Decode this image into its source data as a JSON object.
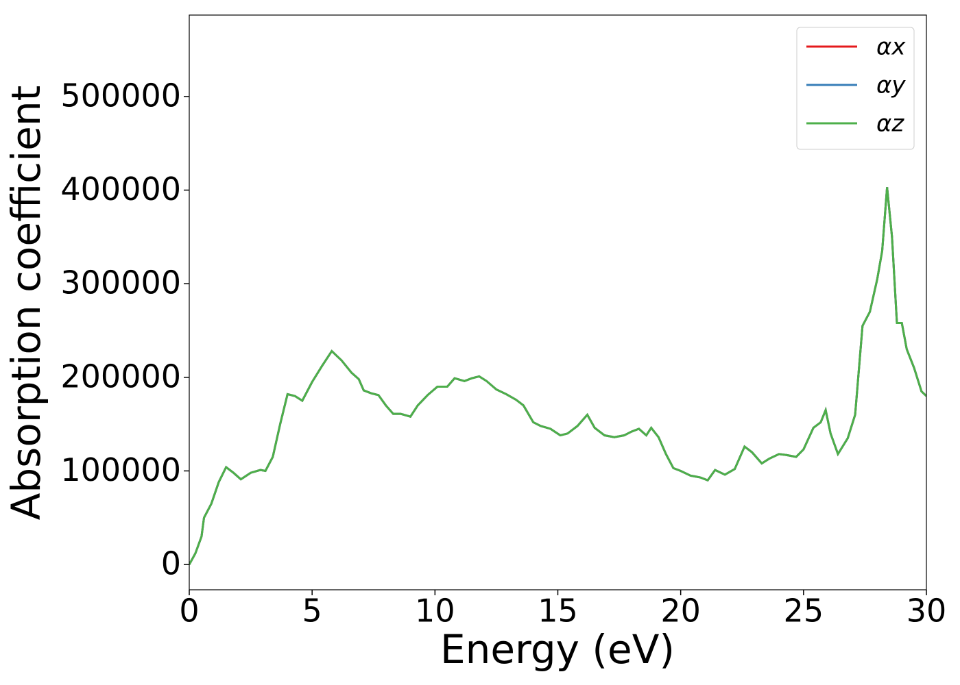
{
  "chart_data": {
    "type": "line",
    "xlabel": "Energy (eV)",
    "ylabel": "Absorption coefficient",
    "x": [
      0,
      0.25,
      0.5,
      0.6,
      0.9,
      1.2,
      1.5,
      1.8,
      2.1,
      2.5,
      2.9,
      3.1,
      3.4,
      3.7,
      4.0,
      4.3,
      4.6,
      5.0,
      5.4,
      5.8,
      6.2,
      6.6,
      6.9,
      7.1,
      7.4,
      7.7,
      8.0,
      8.3,
      8.6,
      9.0,
      9.3,
      9.7,
      10.1,
      10.5,
      10.8,
      11.2,
      11.5,
      11.8,
      12.1,
      12.5,
      12.9,
      13.3,
      13.6,
      14.0,
      14.3,
      14.7,
      15.1,
      15.4,
      15.8,
      16.2,
      16.5,
      16.9,
      17.3,
      17.7,
      18.0,
      18.3,
      18.6,
      18.8,
      19.1,
      19.4,
      19.7,
      20.0,
      20.4,
      20.8,
      21.1,
      21.4,
      21.8,
      22.2,
      22.6,
      22.9,
      23.3,
      23.6,
      24.0,
      24.3,
      24.7,
      25.0,
      25.4,
      25.7,
      25.9,
      26.1,
      26.4,
      26.8,
      27.1,
      27.4,
      27.7,
      28.0,
      28.2,
      28.4,
      28.6,
      28.8,
      29.0,
      29.2,
      29.5,
      29.8,
      30
    ],
    "series": [
      {
        "name": "αx",
        "color": "#e41a1c",
        "values": [
          0,
          12000,
          30000,
          50000,
          65000,
          88000,
          104000,
          98000,
          91000,
          98000,
          101000,
          100000,
          115000,
          150000,
          182000,
          180000,
          175000,
          195000,
          212000,
          228000,
          218000,
          205000,
          198000,
          186000,
          183000,
          181000,
          170000,
          161000,
          161000,
          158000,
          170000,
          181000,
          190000,
          190000,
          199000,
          196000,
          199000,
          201000,
          196000,
          187000,
          182000,
          176000,
          170000,
          152000,
          148000,
          145000,
          138000,
          140000,
          148000,
          160000,
          146000,
          138000,
          136000,
          138000,
          142000,
          145000,
          138000,
          146000,
          136000,
          118000,
          103000,
          100000,
          95000,
          93000,
          90000,
          101000,
          96000,
          102000,
          126000,
          120000,
          108000,
          113000,
          118000,
          117000,
          115000,
          123000,
          146000,
          152000,
          165000,
          140000,
          118000,
          135000,
          160000,
          255000,
          270000,
          305000,
          335000,
          403000,
          350000,
          258000,
          258000,
          230000,
          210000,
          185000,
          180000
        ]
      },
      {
        "name": "αy",
        "color": "#377eb8",
        "values": [
          0,
          12000,
          30000,
          50000,
          65000,
          88000,
          104000,
          98000,
          91000,
          98000,
          101000,
          100000,
          115000,
          150000,
          182000,
          180000,
          175000,
          195000,
          212000,
          228000,
          218000,
          205000,
          198000,
          186000,
          183000,
          181000,
          170000,
          161000,
          161000,
          158000,
          170000,
          181000,
          190000,
          190000,
          199000,
          196000,
          199000,
          201000,
          196000,
          187000,
          182000,
          176000,
          170000,
          152000,
          148000,
          145000,
          138000,
          140000,
          148000,
          160000,
          146000,
          138000,
          136000,
          138000,
          142000,
          145000,
          138000,
          146000,
          136000,
          118000,
          103000,
          100000,
          95000,
          93000,
          90000,
          101000,
          96000,
          102000,
          126000,
          120000,
          108000,
          113000,
          118000,
          117000,
          115000,
          123000,
          146000,
          152000,
          165000,
          140000,
          118000,
          135000,
          160000,
          255000,
          270000,
          305000,
          335000,
          403000,
          350000,
          258000,
          258000,
          230000,
          210000,
          185000,
          180000
        ]
      },
      {
        "name": "αz",
        "color": "#4daf4a",
        "values": [
          0,
          12000,
          30000,
          50000,
          65000,
          88000,
          104000,
          98000,
          91000,
          98000,
          101000,
          100000,
          115000,
          150000,
          182000,
          180000,
          175000,
          195000,
          212000,
          228000,
          218000,
          205000,
          198000,
          186000,
          183000,
          181000,
          170000,
          161000,
          161000,
          158000,
          170000,
          181000,
          190000,
          190000,
          199000,
          196000,
          199000,
          201000,
          196000,
          187000,
          182000,
          176000,
          170000,
          152000,
          148000,
          145000,
          138000,
          140000,
          148000,
          160000,
          146000,
          138000,
          136000,
          138000,
          142000,
          145000,
          138000,
          146000,
          136000,
          118000,
          103000,
          100000,
          95000,
          93000,
          90000,
          101000,
          96000,
          102000,
          126000,
          120000,
          108000,
          113000,
          118000,
          117000,
          115000,
          123000,
          146000,
          152000,
          165000,
          140000,
          118000,
          135000,
          160000,
          255000,
          270000,
          305000,
          335000,
          403000,
          350000,
          258000,
          258000,
          230000,
          210000,
          185000,
          180000
        ]
      }
    ],
    "xlim": [
      0,
      30
    ],
    "xticks": [
      0,
      5,
      10,
      15,
      20,
      25,
      30
    ],
    "ylim": [
      -27000,
      587000
    ],
    "yticks": [
      0,
      100000,
      200000,
      300000,
      400000,
      500000
    ],
    "grid": false,
    "legend": "upper right"
  }
}
